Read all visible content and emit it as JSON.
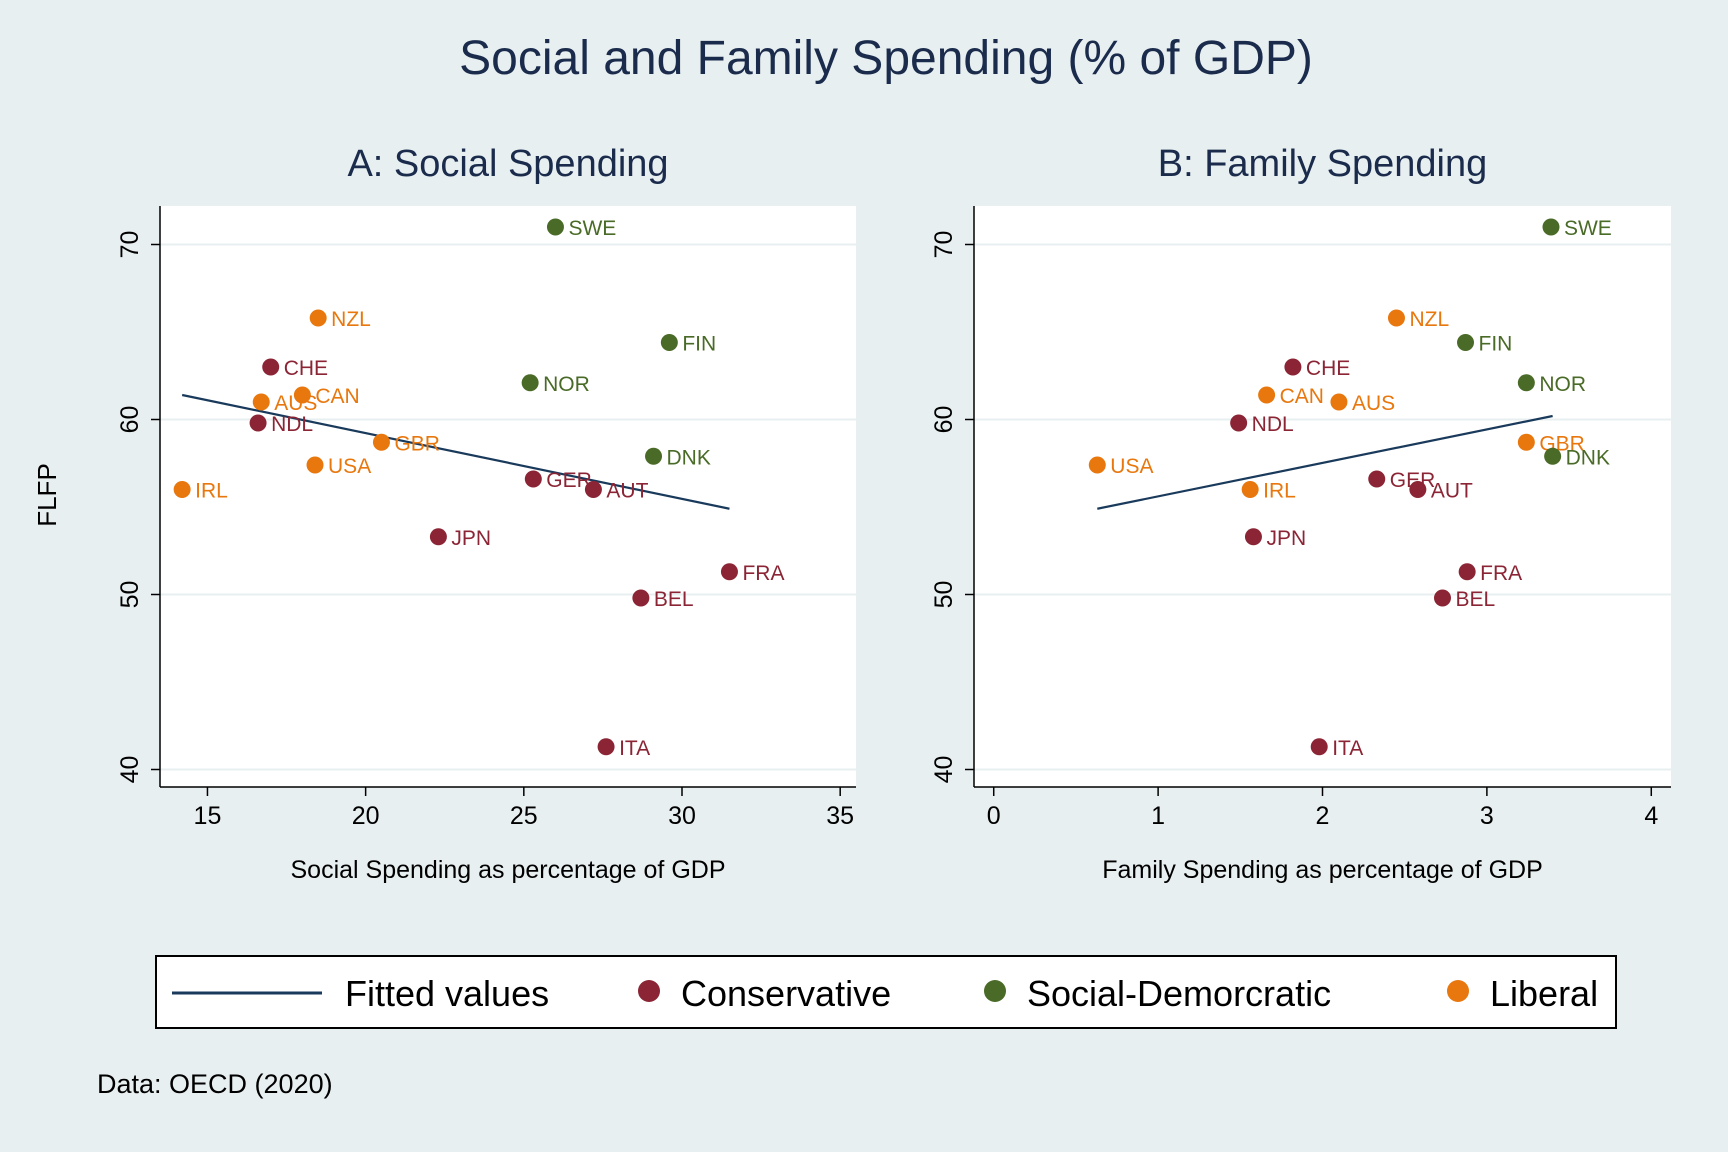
{
  "figure": {
    "title": "Social and Family Spending (% of GDP)",
    "ylabel": "FLFP",
    "note": "Data: OECD (2020)"
  },
  "colors": {
    "background": "#e8eff1",
    "plot_background": "#ffffff",
    "title": "#1a2b4c",
    "fitted_line": "#1a3a5c",
    "Conservative": "#8b2535",
    "Social-Demorcratic": "#4a6b27",
    "Liberal": "#e8770e"
  },
  "legend": {
    "items": [
      {
        "key": "fitted",
        "label": "Fitted values",
        "kind": "line"
      },
      {
        "key": "Conservative",
        "label": "Conservative",
        "kind": "marker"
      },
      {
        "key": "Social-Demorcratic",
        "label": "Social-Demorcratic",
        "kind": "marker"
      },
      {
        "key": "Liberal",
        "label": "Liberal",
        "kind": "marker"
      }
    ],
    "placement": "bottom"
  },
  "chart_data": [
    {
      "type": "scatter",
      "title": "A: Social Spending",
      "xlabel": "Social Spending as percentage of GDP",
      "ylabel": "FLFP",
      "xlim": [
        13.5,
        35.5
      ],
      "ylim": [
        39,
        72.2
      ],
      "xticks": [
        15,
        20,
        25,
        30,
        35
      ],
      "yticks": [
        40,
        50,
        60,
        70
      ],
      "grid": "horizontal",
      "fitted": {
        "x": [
          14.2,
          31.5
        ],
        "y": [
          61.4,
          54.9
        ]
      },
      "points": [
        {
          "label": "SWE",
          "group": "Social-Demorcratic",
          "x": 26.0,
          "y": 71.0
        },
        {
          "label": "NZL",
          "group": "Liberal",
          "x": 18.5,
          "y": 65.8
        },
        {
          "label": "FIN",
          "group": "Social-Demorcratic",
          "x": 29.6,
          "y": 64.4
        },
        {
          "label": "CHE",
          "group": "Conservative",
          "x": 17.0,
          "y": 63.0
        },
        {
          "label": "NOR",
          "group": "Social-Demorcratic",
          "x": 25.2,
          "y": 62.1
        },
        {
          "label": "CAN",
          "group": "Liberal",
          "x": 18.0,
          "y": 61.4
        },
        {
          "label": "AUS",
          "group": "Liberal",
          "x": 16.7,
          "y": 61.0
        },
        {
          "label": "NDL",
          "group": "Conservative",
          "x": 16.6,
          "y": 59.8
        },
        {
          "label": "GBR",
          "group": "Liberal",
          "x": 20.5,
          "y": 58.7
        },
        {
          "label": "DNK",
          "group": "Social-Demorcratic",
          "x": 29.1,
          "y": 57.9
        },
        {
          "label": "USA",
          "group": "Liberal",
          "x": 18.4,
          "y": 57.4
        },
        {
          "label": "GER",
          "group": "Conservative",
          "x": 25.3,
          "y": 56.6
        },
        {
          "label": "IRL",
          "group": "Liberal",
          "x": 14.2,
          "y": 56.0
        },
        {
          "label": "AUT",
          "group": "Conservative",
          "x": 27.2,
          "y": 56.0
        },
        {
          "label": "JPN",
          "group": "Conservative",
          "x": 22.3,
          "y": 53.3
        },
        {
          "label": "FRA",
          "group": "Conservative",
          "x": 31.5,
          "y": 51.3
        },
        {
          "label": "BEL",
          "group": "Conservative",
          "x": 28.7,
          "y": 49.8
        },
        {
          "label": "ITA",
          "group": "Conservative",
          "x": 27.6,
          "y": 41.3
        }
      ]
    },
    {
      "type": "scatter",
      "title": "B: Family Spending",
      "xlabel": "Family Spending as percentage of GDP",
      "ylabel": "FLFP",
      "xlim": [
        -0.12,
        4.12
      ],
      "ylim": [
        39,
        72.2
      ],
      "xticks": [
        0,
        1,
        2,
        3,
        4
      ],
      "yticks": [
        40,
        50,
        60,
        70
      ],
      "grid": "horizontal",
      "fitted": {
        "x": [
          0.63,
          3.4
        ],
        "y": [
          54.9,
          60.2
        ]
      },
      "points": [
        {
          "label": "SWE",
          "group": "Social-Demorcratic",
          "x": 3.39,
          "y": 71.0
        },
        {
          "label": "NZL",
          "group": "Liberal",
          "x": 2.45,
          "y": 65.8
        },
        {
          "label": "FIN",
          "group": "Social-Demorcratic",
          "x": 2.87,
          "y": 64.4
        },
        {
          "label": "CHE",
          "group": "Conservative",
          "x": 1.82,
          "y": 63.0
        },
        {
          "label": "NOR",
          "group": "Social-Demorcratic",
          "x": 3.24,
          "y": 62.1
        },
        {
          "label": "CAN",
          "group": "Liberal",
          "x": 1.66,
          "y": 61.4
        },
        {
          "label": "AUS",
          "group": "Liberal",
          "x": 2.1,
          "y": 61.0
        },
        {
          "label": "NDL",
          "group": "Conservative",
          "x": 1.49,
          "y": 59.8
        },
        {
          "label": "GBR",
          "group": "Liberal",
          "x": 3.24,
          "y": 58.7
        },
        {
          "label": "DNK",
          "group": "Social-Demorcratic",
          "x": 3.4,
          "y": 57.9
        },
        {
          "label": "USA",
          "group": "Liberal",
          "x": 0.63,
          "y": 57.4
        },
        {
          "label": "GER",
          "group": "Conservative",
          "x": 2.33,
          "y": 56.6
        },
        {
          "label": "IRL",
          "group": "Liberal",
          "x": 1.56,
          "y": 56.0
        },
        {
          "label": "AUT",
          "group": "Conservative",
          "x": 2.58,
          "y": 56.0
        },
        {
          "label": "JPN",
          "group": "Conservative",
          "x": 1.58,
          "y": 53.3
        },
        {
          "label": "FRA",
          "group": "Conservative",
          "x": 2.88,
          "y": 51.3
        },
        {
          "label": "BEL",
          "group": "Conservative",
          "x": 2.73,
          "y": 49.8
        },
        {
          "label": "ITA",
          "group": "Conservative",
          "x": 1.98,
          "y": 41.3
        }
      ]
    }
  ]
}
